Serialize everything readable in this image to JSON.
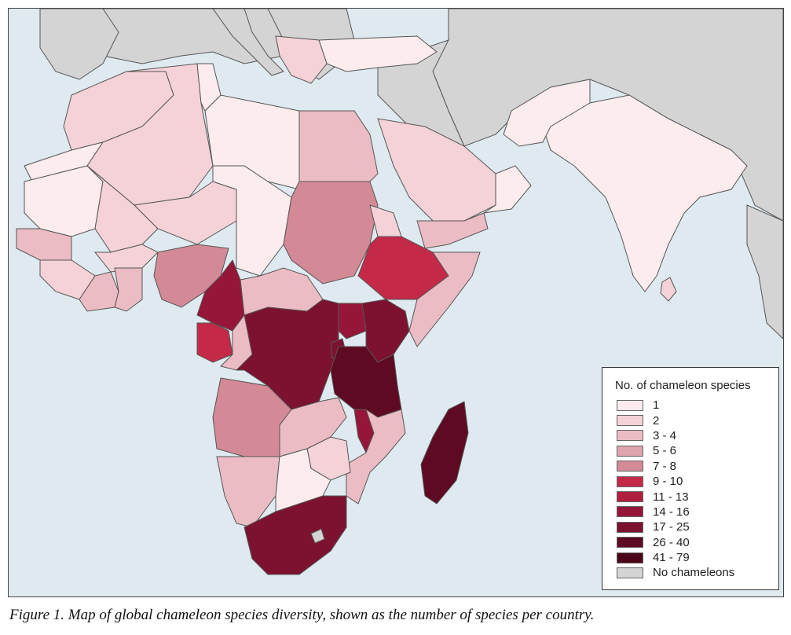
{
  "map": {
    "legend_title": "No. of chameleon species",
    "legend": [
      {
        "label": "1",
        "color": "#fcecee"
      },
      {
        "label": "2",
        "color": "#f4d2d8"
      },
      {
        "label": "3 - 4",
        "color": "#ebbcc4"
      },
      {
        "label": "5 - 6",
        "color": "#dea4ae"
      },
      {
        "label": "7 - 8",
        "color": "#d38a96"
      },
      {
        "label": "9 - 10",
        "color": "#c42a48"
      },
      {
        "label": "11 - 13",
        "color": "#b0203e"
      },
      {
        "label": "14 - 16",
        "color": "#96163a"
      },
      {
        "label": "17 - 25",
        "color": "#7c1230"
      },
      {
        "label": "26 - 40",
        "color": "#5e0a22"
      },
      {
        "label": "41 - 79",
        "color": "#4a0618"
      },
      {
        "label": "No chameleons",
        "color": "#d4d4d4"
      }
    ],
    "colors": {
      "ocean": "#dfeaf0",
      "no_data": "#d4d4d4",
      "border": "#555555"
    }
  },
  "caption": "Figure 1. Map of global chameleon species diversity, shown as the number of species per country."
}
